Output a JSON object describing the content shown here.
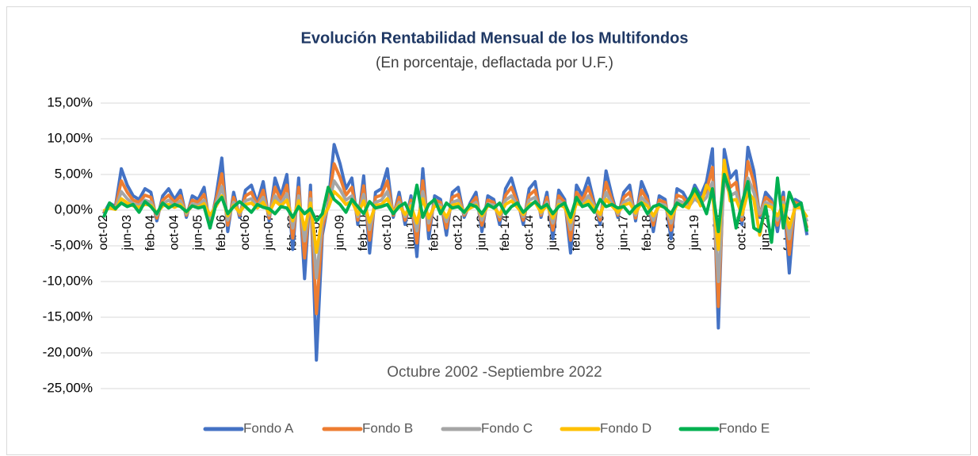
{
  "chart_data": {
    "type": "line",
    "title": "Evolución Rentabilidad Mensual de los Multifondos",
    "subtitle": "(En porcentaje, deflactada por U.F.)",
    "x_label": "Octubre 2002 -Septiembre 2022",
    "categories": [
      "oct-02",
      null,
      null,
      null,
      "jun-03",
      null,
      null,
      null,
      "feb-04",
      null,
      null,
      null,
      "oct-04",
      null,
      null,
      null,
      "jun-05",
      null,
      null,
      null,
      "feb-06",
      null,
      null,
      null,
      "oct-06",
      null,
      null,
      null,
      "jun-07",
      null,
      null,
      null,
      "feb-08",
      null,
      null,
      null,
      "oct-08",
      null,
      null,
      null,
      "jun-09",
      null,
      null,
      null,
      "feb-10",
      null,
      null,
      null,
      "oct-10",
      null,
      null,
      null,
      "jun-11",
      null,
      null,
      null,
      "feb-12",
      null,
      null,
      null,
      "oct-12",
      null,
      null,
      null,
      "jun-13",
      null,
      null,
      null,
      "feb-14",
      null,
      null,
      null,
      "oct-14",
      null,
      null,
      null,
      "jun-15",
      null,
      null,
      null,
      "feb-16",
      null,
      null,
      null,
      "oct-16",
      null,
      null,
      null,
      "jun-17",
      null,
      null,
      null,
      "feb-18",
      null,
      null,
      null,
      "oct-18",
      null,
      null,
      null,
      "jun-19",
      null,
      null,
      null,
      "feb-20",
      null,
      null,
      null,
      "oct-20",
      null,
      null,
      null,
      "jun-21",
      null,
      null,
      null,
      "feb-22",
      null,
      null,
      null
    ],
    "series": [
      {
        "name": "Fondo A",
        "color": "#4472c4",
        "values": [
          -0.5,
          1.0,
          0.5,
          5.8,
          3.5,
          2.0,
          1.5,
          3.0,
          2.5,
          -1.5,
          2.0,
          3.0,
          1.5,
          2.8,
          -1.0,
          2.0,
          1.5,
          3.2,
          -2.5,
          1.8,
          7.3,
          -3.0,
          2.5,
          -1.0,
          2.8,
          3.5,
          1.0,
          4.0,
          -1.5,
          4.5,
          2.0,
          5.0,
          -5.5,
          4.5,
          -9.6,
          3.5,
          -21.0,
          -3.5,
          1.0,
          9.2,
          6.5,
          3.0,
          4.5,
          -2.0,
          4.8,
          -6.0,
          2.5,
          3.0,
          5.8,
          -1.0,
          2.5,
          -2.0,
          2.0,
          -6.5,
          5.8,
          -4.0,
          2.0,
          1.5,
          -3.5,
          2.5,
          3.2,
          -1.0,
          1.0,
          2.5,
          -3.0,
          2.0,
          1.5,
          -2.0,
          3.0,
          4.5,
          1.5,
          -2.0,
          3.0,
          4.0,
          -1.0,
          2.5,
          -4.0,
          2.8,
          1.5,
          -6.0,
          3.5,
          2.0,
          4.5,
          1.0,
          -2.0,
          5.5,
          2.0,
          -1.0,
          2.5,
          3.5,
          -1.5,
          4.0,
          2.0,
          -3.0,
          2.0,
          1.5,
          -4.0,
          3.0,
          2.5,
          1.0,
          3.5,
          2.0,
          4.0,
          8.6,
          -16.5,
          8.5,
          4.5,
          5.5,
          -2.0,
          8.8,
          5.5,
          -1.0,
          2.5,
          1.5,
          -3.0,
          2.5,
          -8.8,
          1.5,
          1.0,
          -3.5
        ]
      },
      {
        "name": "Fondo B",
        "color": "#ed7d31",
        "values": [
          -0.4,
          0.7,
          0.4,
          4.1,
          2.5,
          1.4,
          1.1,
          2.1,
          1.8,
          -1.1,
          1.4,
          2.1,
          1.1,
          2.0,
          -0.7,
          1.4,
          1.1,
          2.2,
          -1.8,
          1.3,
          5.1,
          -2.1,
          1.8,
          -0.7,
          2.0,
          2.5,
          0.7,
          2.8,
          -1.1,
          3.2,
          1.4,
          3.5,
          -3.9,
          3.2,
          -6.7,
          2.5,
          -14.5,
          -2.5,
          0.7,
          6.5,
          4.6,
          2.1,
          3.2,
          -1.4,
          3.4,
          -4.2,
          1.8,
          2.1,
          4.1,
          -0.7,
          1.8,
          -1.4,
          1.4,
          -4.6,
          4.1,
          -2.8,
          1.4,
          1.1,
          -2.5,
          1.8,
          2.2,
          -0.7,
          0.7,
          1.8,
          -2.1,
          1.4,
          1.1,
          -1.4,
          2.1,
          3.2,
          1.1,
          -1.4,
          2.1,
          2.8,
          -0.7,
          1.8,
          -2.8,
          2.0,
          1.1,
          -4.2,
          2.5,
          1.4,
          3.2,
          0.7,
          -1.4,
          3.9,
          1.4,
          -0.7,
          1.8,
          2.5,
          -1.1,
          2.8,
          1.4,
          -2.1,
          1.4,
          1.1,
          -2.8,
          2.1,
          1.8,
          0.7,
          2.5,
          1.4,
          2.8,
          6.0,
          -13.5,
          6.5,
          3.2,
          3.9,
          -1.4,
          6.8,
          3.9,
          -0.7,
          1.8,
          1.1,
          -2.1,
          1.8,
          -6.2,
          1.1,
          0.7,
          -2.5
        ]
      },
      {
        "name": "Fondo C",
        "color": "#a5a5a5",
        "values": [
          -0.2,
          0.5,
          0.2,
          2.6,
          1.6,
          0.9,
          0.7,
          1.4,
          1.1,
          -0.7,
          0.9,
          1.4,
          0.7,
          1.3,
          -0.5,
          0.9,
          0.7,
          1.4,
          -1.1,
          0.8,
          3.3,
          -1.4,
          1.1,
          -0.5,
          1.3,
          1.6,
          0.5,
          1.8,
          -0.7,
          2.0,
          0.9,
          2.3,
          -2.5,
          2.0,
          -4.3,
          1.6,
          -9.5,
          -1.6,
          0.5,
          4.1,
          2.9,
          1.4,
          2.0,
          -0.9,
          2.2,
          -2.7,
          1.1,
          1.4,
          2.6,
          -0.5,
          1.1,
          -0.9,
          0.9,
          -2.9,
          2.6,
          -1.8,
          0.9,
          0.7,
          -1.6,
          1.1,
          1.4,
          -0.5,
          0.5,
          1.1,
          -1.4,
          0.9,
          0.7,
          -0.9,
          1.4,
          2.0,
          0.7,
          -0.9,
          1.4,
          1.8,
          -0.5,
          1.1,
          -1.8,
          1.3,
          0.7,
          -2.7,
          1.6,
          0.9,
          2.0,
          0.5,
          -0.9,
          2.5,
          0.9,
          -0.5,
          1.1,
          1.6,
          -0.7,
          1.8,
          0.9,
          -1.4,
          0.9,
          0.7,
          -1.8,
          1.4,
          1.1,
          0.5,
          1.6,
          0.9,
          1.8,
          3.9,
          -10.0,
          4.5,
          2.0,
          2.5,
          -0.9,
          4.5,
          2.5,
          -0.5,
          1.1,
          0.7,
          -1.4,
          1.1,
          -4.0,
          0.7,
          0.5,
          -1.6
        ]
      },
      {
        "name": "Fondo D",
        "color": "#ffc000",
        "values": [
          -0.1,
          0.3,
          0.1,
          1.6,
          1.0,
          0.6,
          0.4,
          0.8,
          0.7,
          -0.4,
          0.6,
          0.8,
          0.4,
          0.8,
          -0.3,
          0.6,
          0.4,
          0.9,
          -0.7,
          0.5,
          2.0,
          -0.8,
          0.7,
          -0.3,
          0.8,
          1.0,
          0.3,
          1.1,
          -0.4,
          1.3,
          0.6,
          1.4,
          -1.5,
          1.3,
          -2.7,
          1.0,
          -5.9,
          -1.0,
          0.3,
          2.6,
          1.8,
          0.8,
          1.3,
          -0.6,
          1.3,
          -1.7,
          0.7,
          0.8,
          1.6,
          -0.3,
          0.7,
          -0.6,
          0.6,
          -1.8,
          1.6,
          -1.1,
          0.6,
          0.4,
          -1.0,
          0.7,
          0.9,
          -0.3,
          0.3,
          0.7,
          -0.8,
          0.6,
          0.4,
          -0.6,
          0.8,
          1.3,
          0.4,
          -0.6,
          0.8,
          1.1,
          -0.3,
          0.7,
          -1.1,
          0.8,
          0.4,
          -1.7,
          1.0,
          0.6,
          1.3,
          0.3,
          -0.6,
          1.5,
          0.6,
          -0.3,
          0.7,
          1.0,
          -0.4,
          1.1,
          0.6,
          -0.8,
          0.6,
          0.4,
          -1.1,
          0.8,
          0.7,
          0.3,
          2.5,
          0.6,
          3.5,
          2.4,
          -5.5,
          7.0,
          1.3,
          1.5,
          -0.6,
          2.5,
          1.5,
          -3.5,
          0.7,
          0.4,
          -0.8,
          0.7,
          -2.5,
          0.4,
          0.3,
          -1.0
        ]
      },
      {
        "name": "Fondo E",
        "color": "#00b050",
        "values": [
          -1.0,
          1.0,
          0.2,
          1.0,
          0.5,
          0.8,
          -0.3,
          1.2,
          0.5,
          -0.5,
          1.0,
          0.3,
          0.8,
          0.5,
          -0.2,
          0.6,
          0.3,
          0.5,
          -2.5,
          0.8,
          1.8,
          -0.5,
          0.5,
          1.2,
          0.5,
          -0.3,
          0.8,
          0.4,
          0.2,
          -0.5,
          0.5,
          0.3,
          -1.0,
          0.5,
          -0.5,
          0.2,
          -1.5,
          -0.5,
          3.2,
          1.5,
          0.8,
          -0.3,
          1.5,
          0.5,
          -0.5,
          1.2,
          0.3,
          0.5,
          0.8,
          -0.5,
          0.5,
          1.0,
          -0.8,
          3.5,
          -1.0,
          0.8,
          1.5,
          -0.5,
          1.0,
          0.3,
          0.5,
          -0.3,
          0.8,
          0.5,
          -0.5,
          0.8,
          0.3,
          1.0,
          -0.5,
          0.5,
          1.0,
          -0.3,
          0.5,
          1.2,
          0.3,
          0.8,
          -0.5,
          0.5,
          1.0,
          -1.0,
          1.8,
          0.5,
          0.8,
          -0.3,
          1.5,
          0.5,
          0.8,
          0.3,
          0.5,
          -0.5,
          0.5,
          1.0,
          -0.5,
          0.5,
          0.8,
          0.3,
          -0.5,
          1.0,
          0.5,
          1.5,
          3.0,
          1.5,
          -0.5,
          3.0,
          -3.0,
          5.0,
          2.5,
          -2.5,
          1.0,
          4.0,
          -2.5,
          -3.0,
          0.5,
          -4.5,
          4.5,
          -2.5,
          2.5,
          0.5,
          1.0,
          -3.0
        ]
      }
    ],
    "ylim": [
      -25,
      15
    ],
    "yticks": [
      {
        "value": 15,
        "label": "15,00%"
      },
      {
        "value": 10,
        "label": "10,00%"
      },
      {
        "value": 5,
        "label": "5,00%"
      },
      {
        "value": 0,
        "label": "0,00%"
      },
      {
        "value": -5,
        "label": "-5,00%"
      },
      {
        "value": -10,
        "label": "-10,00%"
      },
      {
        "value": -15,
        "label": "-15,00%"
      },
      {
        "value": -20,
        "label": "-20,00%"
      },
      {
        "value": -25,
        "label": "-25,00%"
      }
    ],
    "grid": true,
    "legend": "bottom"
  }
}
